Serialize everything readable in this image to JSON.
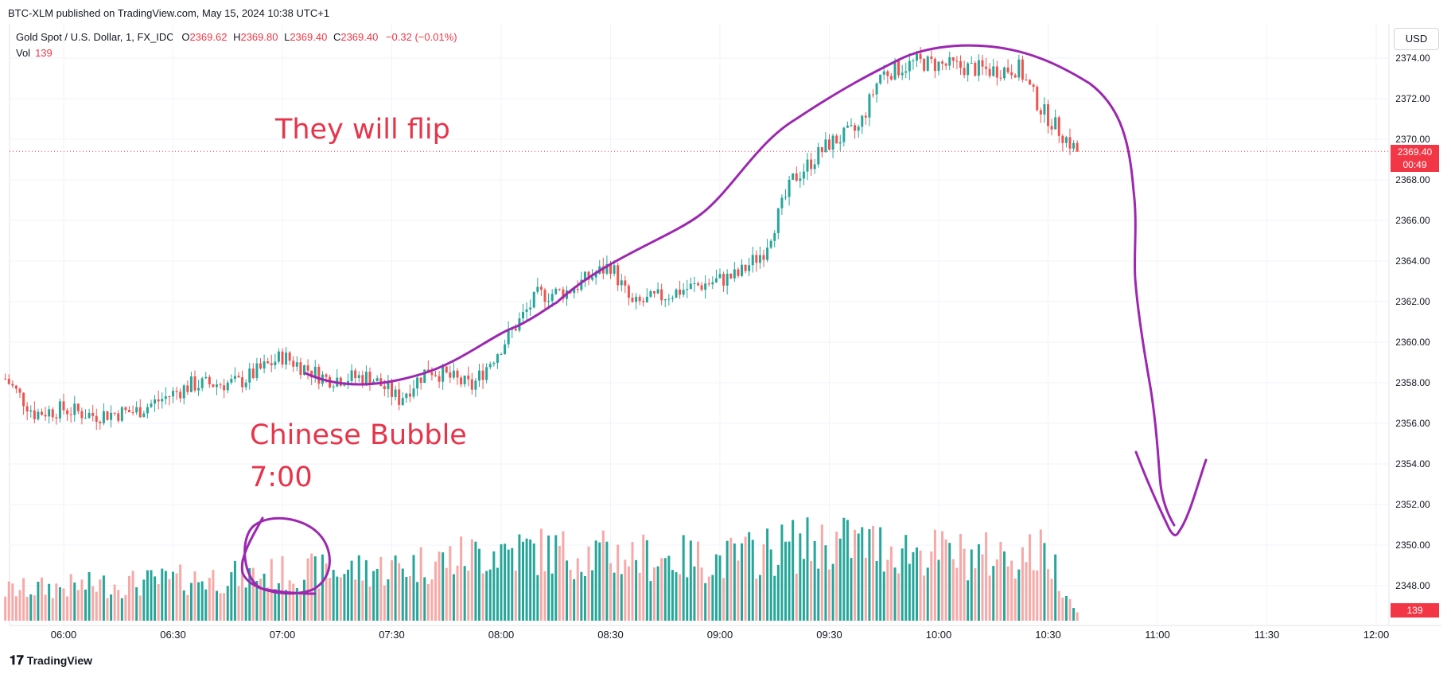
{
  "header": {
    "published": "BTC-XLM published on TradingView.com, May 15, 2024 10:38 UTC+1"
  },
  "legend": {
    "symbol": "Gold Spot / U.S. Dollar, 1, FX_IDC",
    "o_label": "O",
    "o": "2369.62",
    "h_label": "H",
    "h": "2369.80",
    "l_label": "L",
    "l": "2369.40",
    "c_label": "C",
    "c": "2369.40",
    "change": "−0.32 (−0.01%)",
    "vol_label": "Vol",
    "vol": "139"
  },
  "currency": "USD",
  "price_badge": {
    "price": "2369.40",
    "countdown": "00:49"
  },
  "vol_badge": "139",
  "annotations": {
    "flip": "They will flip",
    "bubble": "Chinese Bubble",
    "time": "7:00"
  },
  "footer": {
    "brand": "TradingView"
  },
  "colors": {
    "up": "#26a69a",
    "down": "#ef5350",
    "vol_up": "#26a69a",
    "vol_down": "#f7a9a7",
    "annotation_line": "#9c27b0",
    "annotation_text": "#e8344a"
  },
  "chart_data": {
    "type": "candlestick",
    "title": "Gold Spot / U.S. Dollar, 1, FX_IDC",
    "x_ticks": [
      "06:00",
      "06:30",
      "07:00",
      "07:30",
      "08:00",
      "08:30",
      "09:00",
      "09:30",
      "10:00",
      "10:30",
      "11:00",
      "11:30",
      "12:00"
    ],
    "x_tick_minutes": [
      360,
      390,
      420,
      450,
      480,
      510,
      540,
      570,
      600,
      630,
      660,
      690,
      720
    ],
    "y_ticks": [
      "2348.00",
      "2350.00",
      "2352.00",
      "2354.00",
      "2356.00",
      "2358.00",
      "2360.00",
      "2362.00",
      "2364.00",
      "2366.00",
      "2368.00",
      "2370.00",
      "2372.00",
      "2374.00"
    ],
    "ylim": [
      2346.6,
      2375.0
    ],
    "x_start_time": "05:45",
    "x_end_time": "12:15",
    "last_price": 2369.4,
    "price_path_keypoints": [
      [
        344,
        2358.2
      ],
      [
        352,
        2356.5
      ],
      [
        360,
        2356.7
      ],
      [
        368,
        2356.4
      ],
      [
        380,
        2356.6
      ],
      [
        395,
        2357.9
      ],
      [
        408,
        2358.0
      ],
      [
        420,
        2359.3
      ],
      [
        432,
        2358.2
      ],
      [
        444,
        2358.3
      ],
      [
        452,
        2357.2
      ],
      [
        460,
        2358.7
      ],
      [
        472,
        2357.8
      ],
      [
        480,
        2359.8
      ],
      [
        490,
        2362.3
      ],
      [
        498,
        2362.5
      ],
      [
        510,
        2363.8
      ],
      [
        516,
        2361.8
      ],
      [
        530,
        2362.6
      ],
      [
        545,
        2363.3
      ],
      [
        552,
        2364.5
      ],
      [
        560,
        2368.0
      ],
      [
        570,
        2369.8
      ],
      [
        578,
        2370.5
      ],
      [
        584,
        2373.2
      ],
      [
        594,
        2373.8
      ],
      [
        604,
        2373.6
      ],
      [
        614,
        2373.4
      ],
      [
        622,
        2373.5
      ],
      [
        628,
        2371.5
      ],
      [
        638,
        2369.4
      ]
    ],
    "volume_profile_keypoints": [
      [
        344,
        40
      ],
      [
        360,
        45
      ],
      [
        380,
        50
      ],
      [
        395,
        55
      ],
      [
        410,
        60
      ],
      [
        430,
        65
      ],
      [
        450,
        70
      ],
      [
        470,
        85
      ],
      [
        480,
        95
      ],
      [
        500,
        90
      ],
      [
        520,
        85
      ],
      [
        540,
        80
      ],
      [
        560,
        100
      ],
      [
        575,
        105
      ],
      [
        590,
        95
      ],
      [
        610,
        85
      ],
      [
        630,
        90
      ],
      [
        638,
        10
      ]
    ]
  }
}
